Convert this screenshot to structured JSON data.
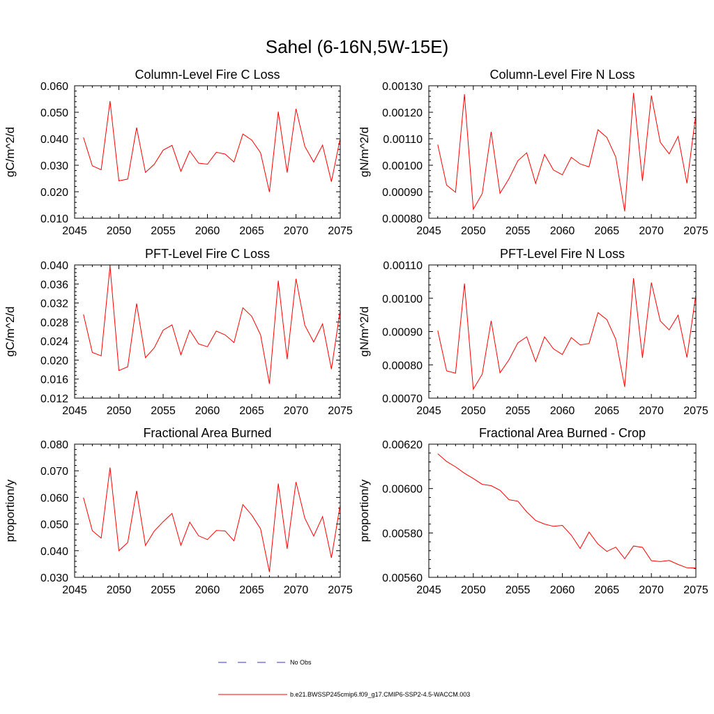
{
  "page_title": "Sahel (6-16N,5W-15E)",
  "legend": {
    "obs_label": "No Obs",
    "model_label": "b.e21.BWSSP245cmip6.f09_g17.CMIP6-SSP2-4.5-WACCM.003",
    "obs_color": "#3333cc",
    "model_color": "#ff0000"
  },
  "chart_data": [
    {
      "type": "line",
      "title": "Column-Level Fire C Loss",
      "xlabel": "",
      "ylabel": "gC/m^2/d",
      "xlim": [
        2045,
        2075
      ],
      "ylim": [
        0.01,
        0.06
      ],
      "x_ticks": [
        2045,
        2050,
        2055,
        2060,
        2065,
        2070,
        2075
      ],
      "x_tick_labels": [
        "2045",
        "2050",
        "2055",
        "2060",
        "2065",
        "2070",
        "2075"
      ],
      "y_ticks": [
        0.01,
        0.02,
        0.03,
        0.04,
        0.05,
        0.06
      ],
      "y_tick_labels": [
        "0.010",
        "0.020",
        "0.030",
        "0.040",
        "0.050",
        "0.060"
      ],
      "x": [
        2046,
        2047,
        2048,
        2049,
        2050,
        2051,
        2052,
        2053,
        2054,
        2055,
        2056,
        2057,
        2058,
        2059,
        2060,
        2061,
        2062,
        2063,
        2064,
        2065,
        2066,
        2067,
        2068,
        2069,
        2070,
        2071,
        2072,
        2073,
        2074,
        2075
      ],
      "series": [
        {
          "name": "b.e21.BWSSP245cmip6.f09_g17.CMIP6-SSP2-4.5-WACCM.003",
          "values": [
            0.0405,
            0.0298,
            0.0283,
            0.0542,
            0.0241,
            0.0248,
            0.0442,
            0.0273,
            0.0304,
            0.0357,
            0.0375,
            0.0277,
            0.0354,
            0.0308,
            0.0304,
            0.0349,
            0.0342,
            0.0312,
            0.0418,
            0.0395,
            0.0347,
            0.0199,
            0.0502,
            0.0272,
            0.0513,
            0.0371,
            0.0312,
            0.0376,
            0.0238,
            0.0403
          ]
        }
      ]
    },
    {
      "type": "line",
      "title": "Column-Level Fire N Loss",
      "xlabel": "",
      "ylabel": "gN/m^2/d",
      "xlim": [
        2045,
        2075
      ],
      "ylim": [
        0.0008,
        0.0013
      ],
      "x_ticks": [
        2045,
        2050,
        2055,
        2060,
        2065,
        2070,
        2075
      ],
      "x_tick_labels": [
        "2045",
        "2050",
        "2055",
        "2060",
        "2065",
        "2070",
        "2075"
      ],
      "y_ticks": [
        0.0008,
        0.0009,
        0.001,
        0.0011,
        0.0012,
        0.0013
      ],
      "y_tick_labels": [
        "0.00080",
        "0.00090",
        "0.00100",
        "0.00110",
        "0.00120",
        "0.00130"
      ],
      "x": [
        2046,
        2047,
        2048,
        2049,
        2050,
        2051,
        2052,
        2053,
        2054,
        2055,
        2056,
        2057,
        2058,
        2059,
        2060,
        2061,
        2062,
        2063,
        2064,
        2065,
        2066,
        2067,
        2068,
        2069,
        2070,
        2071,
        2072,
        2073,
        2074,
        2075
      ],
      "series": [
        {
          "name": "b.e21.BWSSP245cmip6.f09_g17.CMIP6-SSP2-4.5-WACCM.003",
          "values": [
            0.001078,
            0.000925,
            0.000898,
            0.001268,
            0.000834,
            0.000893,
            0.001126,
            0.000894,
            0.000949,
            0.001017,
            0.001047,
            0.000931,
            0.001041,
            0.000982,
            0.000964,
            0.00103,
            0.001005,
            0.000994,
            0.001134,
            0.001105,
            0.001031,
            0.000826,
            0.001273,
            0.000941,
            0.001263,
            0.001087,
            0.001043,
            0.001109,
            0.000932,
            0.001193
          ]
        }
      ]
    },
    {
      "type": "line",
      "title": "PFT-Level Fire C Loss",
      "xlabel": "",
      "ylabel": "gC/m^2/d",
      "xlim": [
        2045,
        2075
      ],
      "ylim": [
        0.012,
        0.04
      ],
      "x_ticks": [
        2045,
        2050,
        2055,
        2060,
        2065,
        2070,
        2075
      ],
      "x_tick_labels": [
        "2045",
        "2050",
        "2055",
        "2060",
        "2065",
        "2070",
        "2075"
      ],
      "y_ticks": [
        0.012,
        0.016,
        0.02,
        0.024,
        0.028,
        0.032,
        0.036,
        0.04
      ],
      "y_tick_labels": [
        "0.012",
        "0.016",
        "0.020",
        "0.024",
        "0.028",
        "0.032",
        "0.036",
        "0.040"
      ],
      "x": [
        2046,
        2047,
        2048,
        2049,
        2050,
        2051,
        2052,
        2053,
        2054,
        2055,
        2056,
        2057,
        2058,
        2059,
        2060,
        2061,
        2062,
        2063,
        2064,
        2065,
        2066,
        2067,
        2068,
        2069,
        2070,
        2071,
        2072,
        2073,
        2074,
        2075
      ],
      "series": [
        {
          "name": "b.e21.BWSSP245cmip6.f09_g17.CMIP6-SSP2-4.5-WACCM.003",
          "values": [
            0.0296,
            0.0216,
            0.0209,
            0.0398,
            0.0178,
            0.0186,
            0.0319,
            0.0205,
            0.0226,
            0.0263,
            0.0274,
            0.0211,
            0.0263,
            0.0234,
            0.0228,
            0.0261,
            0.0253,
            0.0237,
            0.031,
            0.0292,
            0.0253,
            0.015,
            0.0367,
            0.0202,
            0.0371,
            0.0273,
            0.0238,
            0.0276,
            0.0181,
            0.0306
          ]
        }
      ]
    },
    {
      "type": "line",
      "title": "PFT-Level Fire N Loss",
      "xlabel": "",
      "ylabel": "gN/m^2/d",
      "xlim": [
        2045,
        2075
      ],
      "ylim": [
        0.0007,
        0.0011
      ],
      "x_ticks": [
        2045,
        2050,
        2055,
        2060,
        2065,
        2070,
        2075
      ],
      "x_tick_labels": [
        "2045",
        "2050",
        "2055",
        "2060",
        "2065",
        "2070",
        "2075"
      ],
      "y_ticks": [
        0.0007,
        0.0008,
        0.0009,
        0.001,
        0.0011
      ],
      "y_tick_labels": [
        "0.00070",
        "0.00080",
        "0.00090",
        "0.00100",
        "0.00110"
      ],
      "x": [
        2046,
        2047,
        2048,
        2049,
        2050,
        2051,
        2052,
        2053,
        2054,
        2055,
        2056,
        2057,
        2058,
        2059,
        2060,
        2061,
        2062,
        2063,
        2064,
        2065,
        2066,
        2067,
        2068,
        2069,
        2070,
        2071,
        2072,
        2073,
        2074,
        2075
      ],
      "series": [
        {
          "name": "b.e21.BWSSP245cmip6.f09_g17.CMIP6-SSP2-4.5-WACCM.003",
          "values": [
            0.000903,
            0.000782,
            0.000775,
            0.001044,
            0.000727,
            0.000772,
            0.000932,
            0.000776,
            0.000815,
            0.000866,
            0.000884,
            0.00081,
            0.000884,
            0.000848,
            0.000831,
            0.000882,
            0.00086,
            0.000864,
            0.000957,
            0.000936,
            0.000877,
            0.000734,
            0.00106,
            0.000821,
            0.001047,
            0.000932,
            0.000905,
            0.000949,
            0.000822,
            0.001012
          ]
        }
      ]
    },
    {
      "type": "line",
      "title": "Fractional Area Burned",
      "xlabel": "",
      "ylabel": "proportion/y",
      "xlim": [
        2045,
        2075
      ],
      "ylim": [
        0.03,
        0.08
      ],
      "x_ticks": [
        2045,
        2050,
        2055,
        2060,
        2065,
        2070,
        2075
      ],
      "x_tick_labels": [
        "2045",
        "2050",
        "2055",
        "2060",
        "2065",
        "2070",
        "2075"
      ],
      "y_ticks": [
        0.03,
        0.04,
        0.05,
        0.06,
        0.07,
        0.08
      ],
      "y_tick_labels": [
        "0.030",
        "0.040",
        "0.050",
        "0.060",
        "0.070",
        "0.080"
      ],
      "x": [
        2046,
        2047,
        2048,
        2049,
        2050,
        2051,
        2052,
        2053,
        2054,
        2055,
        2056,
        2057,
        2058,
        2059,
        2060,
        2061,
        2062,
        2063,
        2064,
        2065,
        2066,
        2067,
        2068,
        2069,
        2070,
        2071,
        2072,
        2073,
        2074,
        2075
      ],
      "series": [
        {
          "name": "b.e21.BWSSP245cmip6.f09_g17.CMIP6-SSP2-4.5-WACCM.003",
          "values": [
            0.0599,
            0.0475,
            0.0447,
            0.0712,
            0.04,
            0.0431,
            0.0625,
            0.042,
            0.0474,
            0.0509,
            0.054,
            0.042,
            0.0507,
            0.0456,
            0.0442,
            0.0476,
            0.0474,
            0.0437,
            0.0573,
            0.0534,
            0.0482,
            0.032,
            0.0652,
            0.0407,
            0.0658,
            0.0522,
            0.0455,
            0.0528,
            0.0373,
            0.0574
          ]
        }
      ]
    },
    {
      "type": "line",
      "title": "Fractional Area Burned - Crop",
      "xlabel": "",
      "ylabel": "proportion/y",
      "xlim": [
        2045,
        2075
      ],
      "ylim": [
        0.0056,
        0.0062
      ],
      "x_ticks": [
        2045,
        2050,
        2055,
        2060,
        2065,
        2070,
        2075
      ],
      "x_tick_labels": [
        "2045",
        "2050",
        "2055",
        "2060",
        "2065",
        "2070",
        "2075"
      ],
      "y_ticks": [
        0.0056,
        0.0058,
        0.006,
        0.0062
      ],
      "y_tick_labels": [
        "0.00560",
        "0.00580",
        "0.00600",
        "0.00620"
      ],
      "x": [
        2046,
        2047,
        2048,
        2049,
        2050,
        2051,
        2052,
        2053,
        2054,
        2055,
        2056,
        2057,
        2058,
        2059,
        2060,
        2061,
        2062,
        2063,
        2064,
        2065,
        2066,
        2067,
        2068,
        2069,
        2070,
        2071,
        2072,
        2073,
        2074,
        2075
      ],
      "series": [
        {
          "name": "b.e21.BWSSP245cmip6.f09_g17.CMIP6-SSP2-4.5-WACCM.003",
          "values": [
            0.006157,
            0.006122,
            0.006098,
            0.006069,
            0.006045,
            0.006019,
            0.006013,
            0.005992,
            0.00595,
            0.005943,
            0.005895,
            0.005856,
            0.00584,
            0.00583,
            0.005834,
            0.00579,
            0.00573,
            0.005804,
            0.00575,
            0.005717,
            0.005736,
            0.005684,
            0.005741,
            0.005735,
            0.005675,
            0.005671,
            0.005676,
            0.005658,
            0.005643,
            0.005642
          ]
        }
      ]
    }
  ]
}
